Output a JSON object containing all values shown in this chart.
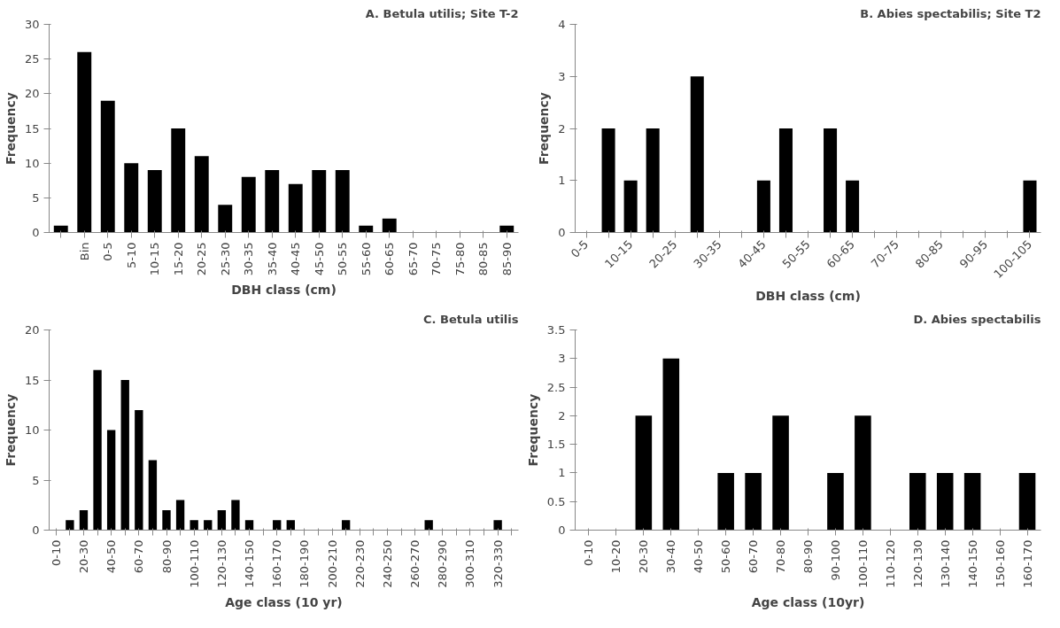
{
  "chart_data": [
    {
      "type": "bar",
      "title": "A. Betula utilis; Site T-2",
      "xlabel": "DBH class (cm)",
      "ylabel": "Frequency",
      "categories": [
        null,
        "Bin",
        "0-5",
        "5-10",
        "10-15",
        "15-20",
        "20-25",
        "25-30",
        "30-35",
        "35-40",
        "40-45",
        "45-50",
        "50-55",
        "55-60",
        "60-65",
        "65-70",
        "70-75",
        "75-80",
        "80-85",
        "85-90"
      ],
      "series": [
        {
          "color": "#000000",
          "values": [
            1,
            26,
            19,
            10,
            9,
            15,
            11,
            4,
            8,
            9,
            7,
            9,
            9,
            1,
            2,
            0,
            0,
            0,
            0,
            1
          ]
        }
      ],
      "ylim": [
        0,
        30
      ],
      "yticks": [
        0,
        5,
        10,
        15,
        20,
        25,
        30
      ],
      "grid": false
    },
    {
      "type": "bar",
      "title": "B. Abies spectabilis; Site T2",
      "xlabel": "DBH class (cm)",
      "ylabel": "Frequency",
      "categories": [
        "0-5",
        null,
        "10-15",
        null,
        "20-25",
        null,
        "30-35",
        null,
        "40-45",
        null,
        "50-55",
        null,
        "60-65",
        null,
        "70-75",
        null,
        "80-85",
        null,
        "90-95",
        null,
        "100-105"
      ],
      "series": [
        {
          "color": "#000000",
          "values": [
            0,
            2,
            1,
            2,
            0,
            3,
            0,
            0,
            1,
            2,
            0,
            2,
            1,
            0,
            0,
            0,
            0,
            0,
            0,
            0,
            1
          ]
        }
      ],
      "ylim": [
        0,
        4
      ],
      "yticks": [
        0,
        1,
        2,
        3,
        4
      ],
      "grid": false
    },
    {
      "type": "bar",
      "title": "C. Betula utilis",
      "xlabel": "Age class (10 yr)",
      "ylabel": "Frequency",
      "categories": [
        "0-10",
        null,
        "20-30",
        null,
        "40-50",
        null,
        "60-70",
        null,
        "80-90",
        null,
        "100-110",
        null,
        "120-130",
        null,
        "140-150",
        null,
        "160-170",
        null,
        "180-190",
        null,
        "200-210",
        null,
        "220-230",
        null,
        "240-250",
        null,
        "260-270",
        null,
        "280-290",
        null,
        "300-310",
        null,
        "320-330",
        null
      ],
      "series": [
        {
          "color": "#000000",
          "values": [
            0,
            1,
            2,
            16,
            10,
            15,
            12,
            7,
            2,
            3,
            1,
            1,
            2,
            3,
            1,
            0,
            1,
            1,
            0,
            0,
            0,
            1,
            0,
            0,
            0,
            0,
            0,
            1,
            0,
            0,
            0,
            0,
            1,
            0
          ]
        }
      ],
      "ylim": [
        0,
        20
      ],
      "yticks": [
        0,
        5,
        10,
        15,
        20
      ],
      "grid": false
    },
    {
      "type": "bar",
      "title": "D. Abies spectabilis",
      "xlabel": "Age class (10yr)",
      "ylabel": "Frequency",
      "categories": [
        "0-10",
        "10-20",
        "20-30",
        "30-40",
        "40-50",
        "50-60",
        "60-70",
        "70-80",
        "80-90",
        "90-100",
        "100-110",
        "110-120",
        "120-130",
        "130-140",
        "140-150",
        "150-160",
        "160-170"
      ],
      "series": [
        {
          "color": "#000000",
          "values": [
            0,
            0,
            2,
            3,
            0,
            1,
            1,
            2,
            0,
            1,
            2,
            0,
            1,
            1,
            1,
            0,
            1
          ]
        }
      ],
      "ylim": [
        0,
        3.5
      ],
      "yticks": [
        0,
        0.5,
        1,
        1.5,
        2,
        2.5,
        3,
        3.5
      ],
      "grid": false
    }
  ]
}
